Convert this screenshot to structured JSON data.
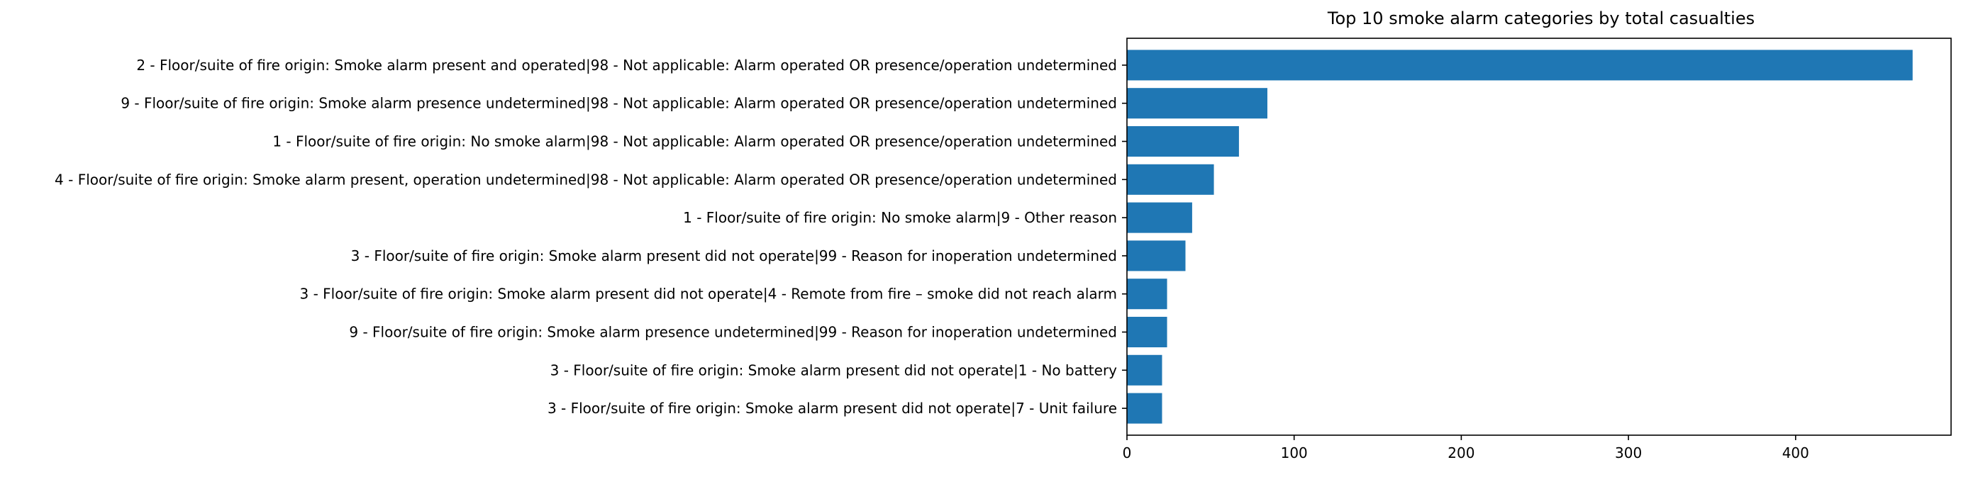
{
  "chart_data": {
    "type": "bar",
    "orientation": "horizontal",
    "title": "Top 10 smoke alarm categories by total casualties",
    "xlabel": "",
    "ylabel": "",
    "color": "#1f77b4",
    "xlim": [
      0,
      493
    ],
    "xticks": [
      0,
      100,
      200,
      300,
      400
    ],
    "grid": false,
    "categories": [
      "2 - Floor/suite of fire origin: Smoke alarm present and operated|98 - Not applicable: Alarm operated OR presence/operation undetermined",
      "9 - Floor/suite of fire origin: Smoke alarm presence undetermined|98 - Not applicable: Alarm operated OR presence/operation undetermined",
      "1 - Floor/suite of fire origin: No smoke alarm|98 - Not applicable: Alarm operated OR presence/operation undetermined",
      "4 - Floor/suite of fire origin: Smoke alarm present, operation undetermined|98 - Not applicable: Alarm operated OR presence/operation undetermined",
      "1 - Floor/suite of fire origin: No smoke alarm|9 - Other reason",
      "3 - Floor/suite of fire origin: Smoke alarm present did not operate|99 - Reason for inoperation undetermined",
      "3 - Floor/suite of fire origin: Smoke alarm present did not operate|4 - Remote from fire – smoke did not reach alarm",
      "9 - Floor/suite of fire origin: Smoke alarm presence undetermined|99 - Reason for inoperation undetermined",
      "3 - Floor/suite of fire origin: Smoke alarm present did not operate|1 - No battery",
      "3 - Floor/suite of fire origin: Smoke alarm present did not operate|7 - Unit failure"
    ],
    "values": [
      470,
      84,
      67,
      52,
      39,
      35,
      24,
      24,
      21,
      21
    ]
  }
}
